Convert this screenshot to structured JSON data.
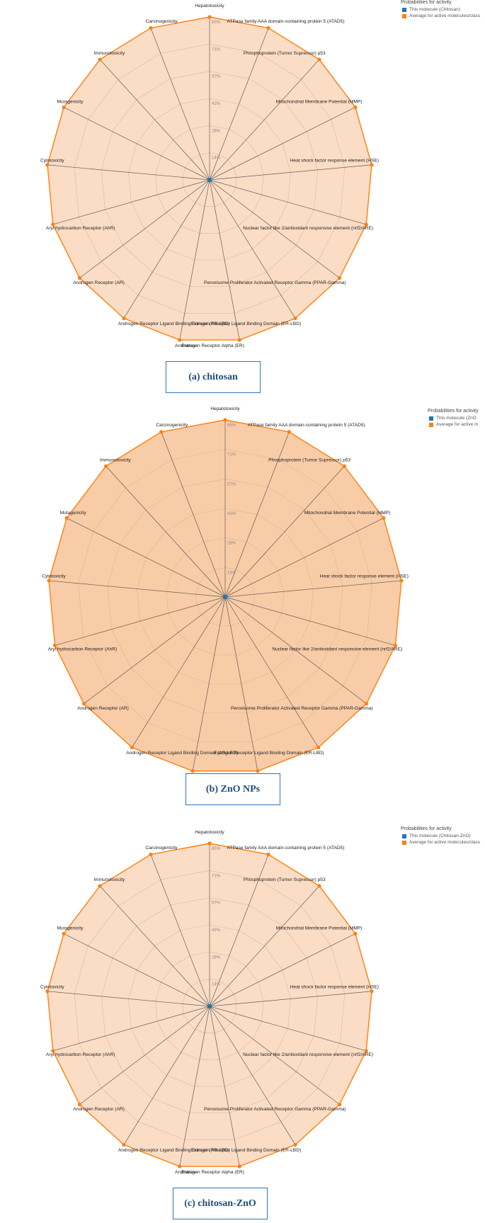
{
  "colors": {
    "this_molecule": "#1f77b4",
    "average": "#ff7f0e",
    "fill": "#f4a261",
    "grid": "#c8c8c8",
    "spoke": "#333333"
  },
  "panels": [
    {
      "caption": "(a) chitosan",
      "legend_title": "Probabilities for activity",
      "legend_items": [
        "This molecule (Chitosan)",
        "Average for active molecules/class"
      ]
    },
    {
      "caption": "(b) ZnO NPs",
      "legend_title": "Probabilities for activity",
      "legend_items": [
        "This molecule (ZnO",
        "Average for active m"
      ]
    },
    {
      "caption": "(c)  chitosan-ZnO",
      "legend_title": "Probabilities for activity",
      "legend_items": [
        "This molecule (Chitosan-ZnO)",
        "Average for active molecules/class"
      ]
    }
  ],
  "chart_data": [
    {
      "type": "radar",
      "axes": [
        "Hepatotoxicity",
        "ATPase family AAA domain-containing protein 5 (ATAD5)",
        "Phosphoprotein (Tumor Supressor) p53",
        "Mitochondrial Membrane Potential (MMP)",
        "Heat shock factor response element (HSE)",
        "Nuclear factor like 2/antioxidant responsive element (nrf2/ARE)",
        "Peroxisome Proliferator Activated Receptor Gamma (PPAR-Gamma)",
        "Estrogen Receptor Ligand Binding Domain (ER-LBD)",
        "Estrogen Receptor Alpha (ER)",
        "Aromatase",
        "Androgen Receptor Ligand Binding Domain (AR-LBD)",
        "Androgen Receptor (AR)",
        "Aryl hydrocarbon Receptor (AhR)",
        "Cytotoxicity",
        "Mutagenicity",
        "Immunotoxicity",
        "Carcinogenicity"
      ],
      "radial_ticks": [
        "14%",
        "28%",
        "42%",
        "57%",
        "71%",
        "85%"
      ],
      "rmax": 85,
      "series": [
        {
          "name": "This molecule (Chitosan)",
          "values": [
            0,
            0,
            0,
            0,
            0,
            0,
            0,
            0,
            0,
            0,
            0,
            0,
            0,
            0,
            0,
            0,
            0
          ]
        },
        {
          "name": "Average for active molecules/class",
          "values": [
            85,
            85,
            85,
            85,
            85,
            85,
            85,
            85,
            85,
            85,
            85,
            85,
            85,
            85,
            85,
            85,
            85
          ]
        }
      ]
    },
    {
      "type": "radar",
      "axes": [
        "Hepatotoxicity",
        "ATPase family AAA domain-containing protein 5 (ATAD5)",
        "Phosphoprotein (Tumor Supressor) p53",
        "Mitochondrial Membrane Potential (MMP)",
        "Heat shock factor response element (HSE)",
        "Nuclear factor like 2/antioxidant responsive element (nrf2/ARE)",
        "Peroxisome Proliferator Activated Receptor Gamma (PPAR-Gamma)",
        "Estrogen Receptor Ligand Binding Domain (ER-LBD)",
        "",
        "",
        "Androgen Receptor Ligand Binding Domain (AR-LBD)",
        "Androgen Receptor (AR)",
        "Aryl hydrocarbon Receptor (AhR)",
        "Cytotoxicity",
        "Mutagenicity",
        "Immunotoxicity",
        "Carcinogenicity"
      ],
      "radial_ticks": [
        "14%",
        "28%",
        "42%",
        "57%",
        "71%",
        "85%"
      ],
      "rmax": 85,
      "series": [
        {
          "name": "This molecule (ZnO",
          "values": [
            0,
            0,
            0,
            0,
            0,
            0,
            0,
            0,
            0,
            0,
            0,
            0,
            0,
            0,
            0,
            0,
            0
          ]
        },
        {
          "name": "Average for active m",
          "values": [
            85,
            85,
            85,
            85,
            85,
            85,
            85,
            85,
            85,
            85,
            85,
            85,
            85,
            85,
            85,
            85,
            85
          ]
        }
      ]
    },
    {
      "type": "radar",
      "axes": [
        "Hepatotoxicity",
        "ATPase family AAA domain-containing protein 5 (ATAD5)",
        "Phosphoprotein (Tumor Supressor) p53",
        "Mitochondrial Membrane Potential (MMP)",
        "Heat shock factor response element (HSE)",
        "Nuclear factor like 2/antioxidant responsive element (nrf2/ARE)",
        "Peroxisome Proliferator Activated Receptor Gamma (PPAR-Gamma)",
        "Estrogen Receptor Ligand Binding Domain (ER-LBD)",
        "Estrogen Receptor Alpha (ER)",
        "Aromatase",
        "Androgen Receptor Ligand Binding Domain (AR-LBD)",
        "Androgen Receptor (AR)",
        "Aryl hydrocarbon Receptor (AhR)",
        "Cytotoxicity",
        "Mutagenicity",
        "Immunotoxicity",
        "Carcinogenicity"
      ],
      "radial_ticks": [
        "14%",
        "28%",
        "42%",
        "57%",
        "71%",
        "85%"
      ],
      "rmax": 85,
      "series": [
        {
          "name": "This molecule (Chitosan-ZnO)",
          "values": [
            0,
            0,
            0,
            0,
            0,
            0,
            0,
            0,
            0,
            0,
            0,
            0,
            0,
            0,
            0,
            0,
            0
          ]
        },
        {
          "name": "Average for active molecules/class",
          "values": [
            85,
            85,
            85,
            85,
            85,
            85,
            85,
            85,
            85,
            85,
            85,
            85,
            85,
            85,
            85,
            85,
            85
          ]
        }
      ]
    }
  ]
}
